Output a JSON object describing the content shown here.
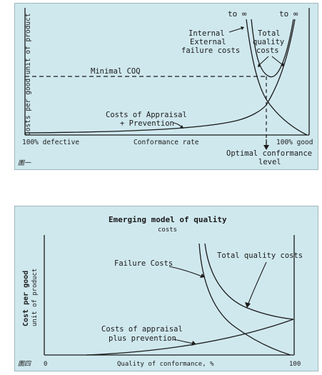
{
  "figure1": {
    "y_axis_label": "Costs per good unit of product",
    "x_left_label": "100% defective",
    "x_center_label": "Conformance rate",
    "x_right_label": "100% good",
    "to_infinity_left": "to ∞",
    "to_infinity_right": "to ∞",
    "internal_external_line1": "Internal",
    "internal_external_line2": "External",
    "internal_external_line3": "failure costs",
    "total_quality_line1": "Total",
    "total_quality_line2": "quality",
    "total_quality_line3": "costs",
    "minimal_coq": "Minimal COQ",
    "appraisal_line1": "Costs of Appraisal",
    "appraisal_line2": "+ Prevention",
    "optimal_line1": "Optimal conformance",
    "optimal_line2": "level",
    "figure_tag": "圖一"
  },
  "figure2": {
    "title": "Emerging model of quality",
    "subtitle": "costs",
    "y_label_line1": "Cost per good",
    "y_label_line2": "unit of product",
    "failure_costs": "Failure Costs",
    "total_quality_costs": "Total quality costs",
    "appraisal_line1": "Costs of appraisal",
    "appraisal_line2": "plus prevention",
    "x_label": "Quality of conformance, %",
    "x_min": "0",
    "x_max": "100",
    "figure_tag": "圖四"
  },
  "colors": {
    "panel_background": "#cfe8ee",
    "ink": "#1b1b1b"
  }
}
